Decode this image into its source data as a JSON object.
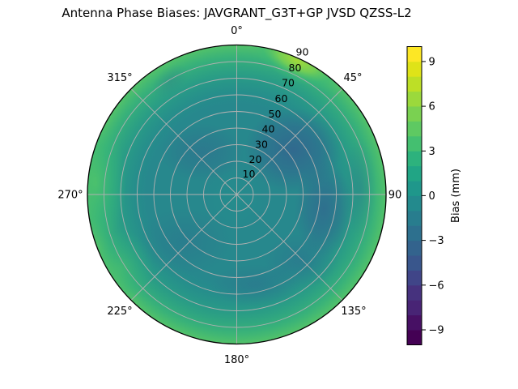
{
  "title": "Antenna Phase Biases: JAVGRANT_G3T+GP JVSD QZSS-L2",
  "chart_data": {
    "type": "heatmap",
    "projection": "polar",
    "title": "Antenna Phase Biases: JAVGRANT_G3T+GP JVSD QZSS-L2",
    "azimuth_zero_location": "top",
    "azimuth_direction": "clockwise",
    "azimuth_tick_labels": [
      "0°",
      "45°",
      "90",
      "135°",
      "180°",
      "225°",
      "270°",
      "315°"
    ],
    "radial_tick_labels": [
      "10",
      "20",
      "30",
      "40",
      "50",
      "60",
      "70",
      "80",
      "90"
    ],
    "radial_range": [
      0,
      90
    ],
    "radial_label_azimuth_deg": 22.5,
    "grid": true,
    "grid_color": "#b0b0b0",
    "outline_color": "#000000",
    "background_color": "#ffffff",
    "colormap": "viridis",
    "colorbar": {
      "label": "Bias (mm)",
      "ticks": [
        "9",
        "6",
        "3",
        "0",
        "−3",
        "−6",
        "−9"
      ],
      "tick_values": [
        9,
        6,
        3,
        0,
        -3,
        -6,
        -9
      ],
      "range": [
        -10,
        10
      ],
      "n_bands": 20,
      "band_step": 1,
      "band_colors_bottom_to_top": [
        "#440154",
        "#471064",
        "#482475",
        "#46327e",
        "#404588",
        "#39568c",
        "#33638d",
        "#2d708e",
        "#287d8e",
        "#238a8d",
        "#1f978b",
        "#21a585",
        "#2db27d",
        "#44bf70",
        "#5ec962",
        "#7ad151",
        "#9bd93c",
        "#bddf26",
        "#dfe318",
        "#fde725"
      ]
    },
    "field_summary": [
      {
        "azimuth_deg": "10-45",
        "radial": "70-90",
        "bias_mm": "+6 to +8 (bright yellow-green patch near rim)"
      },
      {
        "azimuth_deg": "250-330",
        "radial": "75-90",
        "bias_mm": "+3 to +5 (green outer rim, strongest on left)"
      },
      {
        "azimuth_deg": "50-100",
        "radial": "30-65",
        "bias_mm": "-3 to -4 (dark blue region right of center)"
      },
      {
        "azimuth_deg": "100-135",
        "radial": "50-80",
        "bias_mm": "-2 to -3"
      },
      {
        "azimuth_deg": "160-200",
        "radial": "45-65",
        "bias_mm": "-2"
      },
      {
        "azimuth_deg": "210-250",
        "radial": "25-55",
        "bias_mm": "-2 to -3"
      },
      {
        "azimuth_deg": "center",
        "radial": "0-20",
        "bias_mm": "0 to +1 (teal)"
      },
      {
        "azimuth_deg": "elsewhere",
        "radial": "-",
        "bias_mm": "0 to +2 (teal / green-teal)"
      }
    ]
  }
}
